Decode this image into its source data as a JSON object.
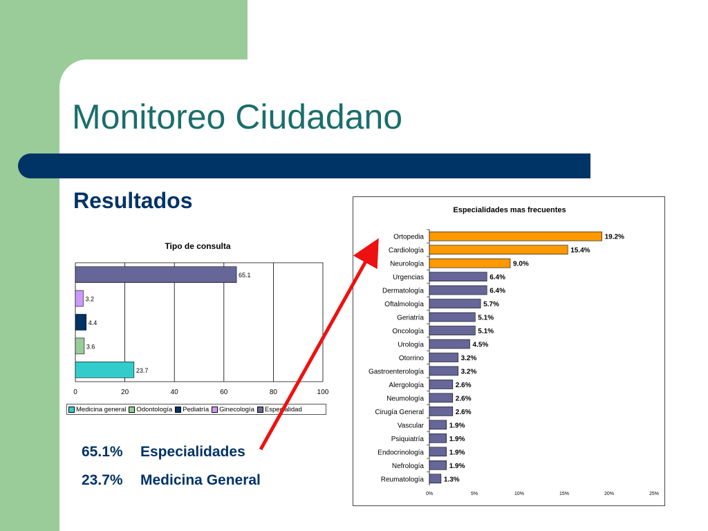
{
  "slide": {
    "title": "Monitoreo Ciudadano",
    "subtitle": "Resultados",
    "summary": [
      {
        "pct": "65.1%",
        "label": "Especialidades"
      },
      {
        "pct": "23.7%",
        "label": "Medicina General"
      }
    ],
    "colors": {
      "green": "#99cc99",
      "navy": "#003366",
      "title": "#1a6e6a",
      "arrow": "#ee1111"
    }
  },
  "chart_data": [
    {
      "type": "bar",
      "orientation": "horizontal",
      "title": "Tipo de consulta",
      "categories": [
        "Medicina general",
        "Odontología",
        "Pediatría",
        "Ginecología",
        "Especialidad"
      ],
      "values": [
        23.7,
        3.6,
        4.4,
        3.2,
        65.1
      ],
      "value_labels": [
        "23.7",
        "3.6",
        "4.4",
        "3.2",
        "65.1"
      ],
      "colors": [
        "#33cccc",
        "#99cc99",
        "#003366",
        "#cc99ff",
        "#666699"
      ],
      "xlim": [
        0,
        100
      ],
      "xticks": [
        "0",
        "20",
        "40",
        "60",
        "80",
        "100"
      ],
      "grid": true,
      "legend": "bottom"
    },
    {
      "type": "bar",
      "orientation": "horizontal",
      "title": "Especialidades mas frecuentes",
      "categories": [
        "Ortopedia",
        "Cardiología",
        "Neurología",
        "Urgencias",
        "Dermatología",
        "Oftalmología",
        "Geriatría",
        "Oncología",
        "Urología",
        "Otorrino",
        "Gastroenterología",
        "Alergología",
        "Neumología",
        "Cirugía General",
        "Vascular",
        "Psiquiatría",
        "Endocrinología",
        "Nefrología",
        "Reumatología"
      ],
      "values": [
        19.2,
        15.4,
        9.0,
        6.4,
        6.4,
        5.7,
        5.1,
        5.1,
        4.5,
        3.2,
        3.2,
        2.6,
        2.6,
        2.6,
        1.9,
        1.9,
        1.9,
        1.9,
        1.3
      ],
      "value_labels": [
        "19.2%",
        "15.4%",
        "9.0%",
        "6.4%",
        "6.4%",
        "5.7%",
        "5.1%",
        "5.1%",
        "4.5%",
        "3.2%",
        "3.2%",
        "2.6%",
        "2.6%",
        "2.6%",
        "1.9%",
        "1.9%",
        "1.9%",
        "1.9%",
        "1.3%"
      ],
      "highlight_count": 3,
      "colors": {
        "highlight": "#ff9900",
        "default": "#666699"
      },
      "xlim": [
        0,
        25
      ],
      "xticks": [
        "0%",
        "5%",
        "10%",
        "15%",
        "20%",
        "25%"
      ],
      "grid": false
    }
  ]
}
